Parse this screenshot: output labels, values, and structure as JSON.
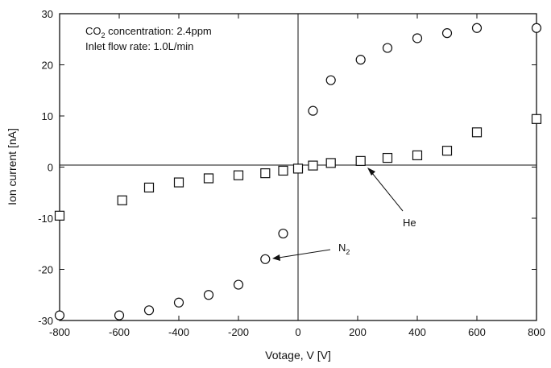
{
  "chart_data": {
    "type": "scatter",
    "xlabel": "Votage, V [V]",
    "ylabel": "Ion current [nA]",
    "xlim": [
      -800,
      800
    ],
    "ylim": [
      -30,
      30
    ],
    "xticks": [
      -800,
      -600,
      -400,
      -200,
      0,
      200,
      400,
      600,
      800
    ],
    "yticks": [
      -30,
      -20,
      -10,
      0,
      10,
      20,
      30
    ],
    "grid": false,
    "annotations": {
      "line1": "CO2 concentration: 2.4ppm",
      "line2": "Inlet flow rate: 1.0L/min"
    },
    "series": [
      {
        "name": "N2",
        "marker": "circle",
        "points": [
          [
            -800,
            -29.0
          ],
          [
            -600,
            -29.0
          ],
          [
            -500,
            -28.0
          ],
          [
            -400,
            -26.5
          ],
          [
            -300,
            -25.0
          ],
          [
            -200,
            -23.0
          ],
          [
            -110,
            -18.0
          ],
          [
            -50,
            -13.0
          ],
          [
            0,
            -0.3
          ],
          [
            50,
            11.0
          ],
          [
            110,
            17.0
          ],
          [
            210,
            21.0
          ],
          [
            300,
            23.3
          ],
          [
            400,
            25.2
          ],
          [
            500,
            26.2
          ],
          [
            600,
            27.2
          ],
          [
            800,
            27.2
          ]
        ]
      },
      {
        "name": "He",
        "marker": "square",
        "points": [
          [
            -800,
            -9.5
          ],
          [
            -590,
            -6.5
          ],
          [
            -500,
            -4.0
          ],
          [
            -400,
            -3.0
          ],
          [
            -300,
            -2.2
          ],
          [
            -200,
            -1.6
          ],
          [
            -110,
            -1.2
          ],
          [
            -50,
            -0.7
          ],
          [
            0,
            -0.3
          ],
          [
            50,
            0.3
          ],
          [
            110,
            0.8
          ],
          [
            210,
            1.2
          ],
          [
            300,
            1.8
          ],
          [
            400,
            2.3
          ],
          [
            500,
            3.2
          ],
          [
            600,
            6.8
          ],
          [
            800,
            9.4
          ]
        ]
      }
    ],
    "labels": {
      "he": "He",
      "n2_base": "N",
      "n2_sub": "2"
    }
  }
}
